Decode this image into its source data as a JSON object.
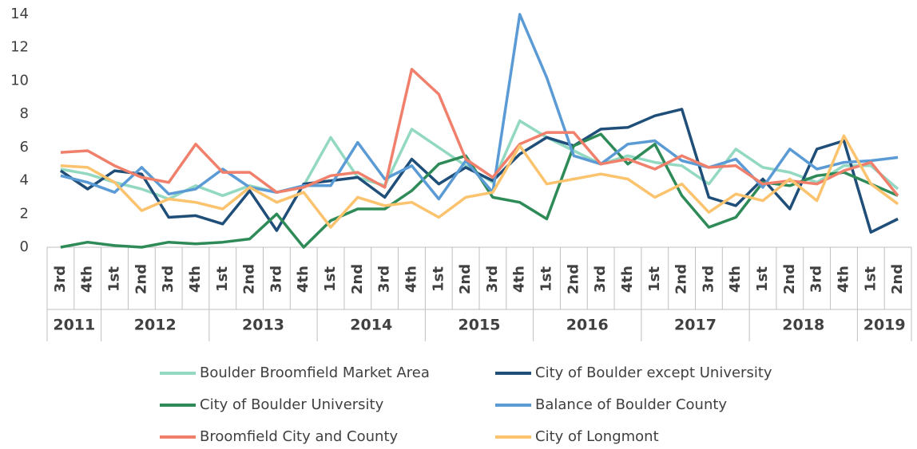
{
  "chart_data": {
    "type": "line",
    "year_groups": [
      {
        "year": "2011",
        "quarters": [
          "3rd",
          "4th"
        ]
      },
      {
        "year": "2012",
        "quarters": [
          "1st",
          "2nd",
          "3rd",
          "4th"
        ]
      },
      {
        "year": "2013",
        "quarters": [
          "1st",
          "2nd",
          "3rd",
          "4th"
        ]
      },
      {
        "year": "2014",
        "quarters": [
          "1st",
          "2nd",
          "3rd",
          "4th"
        ]
      },
      {
        "year": "2015",
        "quarters": [
          "1st",
          "2nd",
          "3rd",
          "4th"
        ]
      },
      {
        "year": "2016",
        "quarters": [
          "1st",
          "2nd",
          "3rd",
          "4th"
        ]
      },
      {
        "year": "2017",
        "quarters": [
          "1st",
          "2nd",
          "3rd",
          "4th"
        ]
      },
      {
        "year": "2018",
        "quarters": [
          "1st",
          "2nd",
          "3rd",
          "4th"
        ]
      },
      {
        "year": "2019",
        "quarters": [
          "1st",
          "2nd"
        ]
      }
    ],
    "ylim": [
      0,
      14
    ],
    "yticks": [
      0,
      2,
      4,
      6,
      8,
      10,
      12,
      14
    ],
    "legend": "bottom",
    "series": [
      {
        "name": "Boulder Broomfield Market Area",
        "color": "#93d9c2",
        "values": [
          4.7,
          4.4,
          3.9,
          3.5,
          2.9,
          3.7,
          3.1,
          3.7,
          3.3,
          3.7,
          6.6,
          4.2,
          3.7,
          7.1,
          6.0,
          4.9,
          3.9,
          7.6,
          6.6,
          5.8,
          5.0,
          5.5,
          5.1,
          4.9,
          3.8,
          5.9,
          4.8,
          4.5,
          3.9,
          4.9,
          4.9,
          3.5
        ]
      },
      {
        "name": "City of Boulder except University",
        "color": "#1f4e79",
        "values": [
          4.6,
          3.5,
          4.6,
          4.4,
          1.8,
          1.9,
          1.4,
          3.4,
          1.0,
          3.8,
          4.0,
          4.2,
          3.0,
          5.3,
          3.8,
          4.8,
          4.0,
          5.6,
          6.6,
          6.1,
          7.1,
          7.2,
          7.9,
          8.3,
          3.0,
          2.5,
          4.1,
          2.3,
          5.9,
          6.4,
          0.9,
          1.7
        ]
      },
      {
        "name": "City of Boulder University",
        "color": "#2e8b57",
        "values": [
          0,
          0.3,
          0.1,
          0,
          0.3,
          0.2,
          0.3,
          0.5,
          2.0,
          0,
          1.6,
          2.3,
          2.3,
          3.4,
          5.0,
          5.5,
          3.0,
          2.7,
          1.7,
          6.1,
          6.8,
          5.0,
          6.2,
          3.1,
          1.2,
          1.8,
          3.9,
          3.7,
          4.3,
          4.5,
          3.8,
          3.1
        ]
      },
      {
        "name": "Balance of Boulder County",
        "color": "#5b9bd5",
        "values": [
          4.3,
          3.9,
          3.3,
          4.8,
          3.2,
          3.5,
          4.7,
          3.6,
          3.3,
          3.7,
          3.7,
          6.3,
          4.1,
          4.9,
          2.9,
          5.2,
          3.3,
          14.0,
          10.2,
          5.5,
          5.0,
          6.2,
          6.4,
          5.2,
          4.8,
          5.3,
          3.6,
          5.9,
          4.7,
          5.1,
          5.2,
          5.4
        ]
      },
      {
        "name": "Broomfield City and County",
        "color": "#f07f6b",
        "values": [
          5.7,
          5.8,
          4.9,
          4.2,
          3.9,
          6.2,
          4.5,
          4.5,
          3.3,
          3.6,
          4.3,
          4.5,
          3.6,
          10.7,
          9.2,
          5.3,
          4.2,
          6.2,
          6.9,
          6.9,
          5.0,
          5.3,
          4.7,
          5.5,
          4.8,
          4.9,
          3.8,
          4.0,
          3.8,
          4.6,
          5.1,
          3.1
        ]
      },
      {
        "name": "City of Longmont",
        "color": "#fbc36e",
        "values": [
          4.9,
          4.8,
          3.9,
          2.2,
          2.9,
          2.7,
          2.3,
          3.6,
          2.7,
          3.3,
          1.2,
          3.0,
          2.5,
          2.7,
          1.8,
          3.0,
          3.3,
          6.1,
          3.8,
          4.1,
          4.4,
          4.1,
          3.0,
          3.8,
          2.1,
          3.2,
          2.8,
          4.1,
          2.8,
          6.7,
          3.8,
          2.6
        ]
      }
    ]
  }
}
